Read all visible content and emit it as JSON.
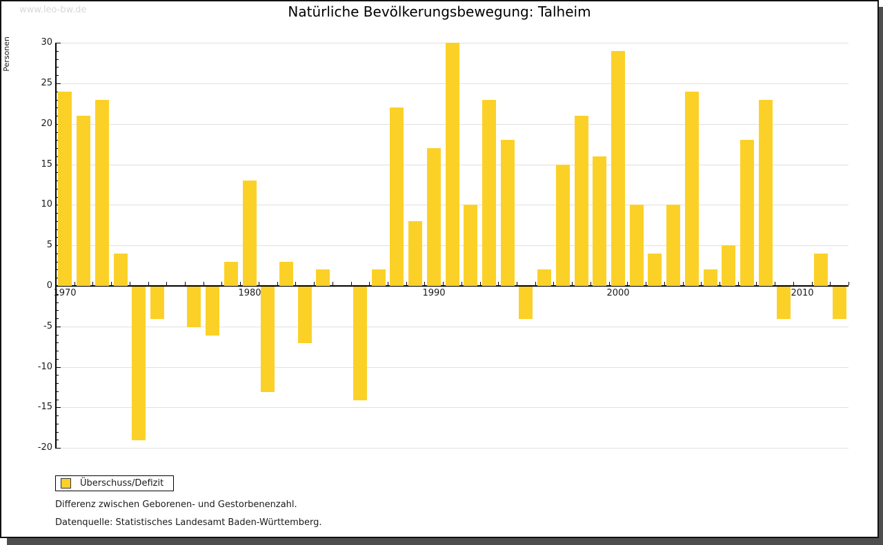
{
  "watermark": "www.leo-bw.de",
  "title": "Natürliche Bevölkerungsbewegung: Talheim",
  "legend": {
    "label": "Überschuss/Defizit"
  },
  "footnotes": {
    "line1": "Differenz zwischen Geborenen- und Gestorbenenzahl.",
    "line2": "Datenquelle: Statistisches Landesamt Baden-Württemberg."
  },
  "colors": {
    "bar": "#fbd128",
    "grid": "#e0e0e0",
    "axis": "#000000",
    "shadow": "#4e4e4e",
    "watermark": "#d8d8d8"
  },
  "chart_data": {
    "type": "bar",
    "title": "Natürliche Bevölkerungsbewegung: Talheim",
    "ylabel": "Personen",
    "xlabel": "",
    "series_name": "Überschuss/Defizit",
    "bar_color": "#fbd128",
    "ylim": [
      -20,
      30
    ],
    "ytick_major_step": 5,
    "ytick_minor_step": 1,
    "grid": true,
    "legend_position": "bottom-left",
    "categories": [
      1970,
      1971,
      1972,
      1973,
      1974,
      1975,
      1976,
      1977,
      1978,
      1979,
      1980,
      1981,
      1982,
      1983,
      1984,
      1985,
      1986,
      1987,
      1988,
      1989,
      1990,
      1991,
      1992,
      1993,
      1994,
      1995,
      1996,
      1997,
      1998,
      1999,
      2000,
      2001,
      2002,
      2003,
      2004,
      2005,
      2006,
      2007,
      2008,
      2009,
      2010,
      2011,
      2012
    ],
    "values": [
      24,
      21,
      23,
      4,
      -19,
      -4,
      0,
      -5,
      -6,
      3,
      13,
      -13,
      3,
      -7,
      2,
      0,
      -14,
      2,
      22,
      8,
      17,
      30,
      10,
      23,
      18,
      -4,
      2,
      15,
      21,
      16,
      29,
      10,
      4,
      10,
      24,
      2,
      5,
      18,
      23,
      -4,
      0,
      4,
      -4
    ],
    "xtick_labels": [
      "1970",
      "1980",
      "1990",
      "2000",
      "2010"
    ]
  }
}
